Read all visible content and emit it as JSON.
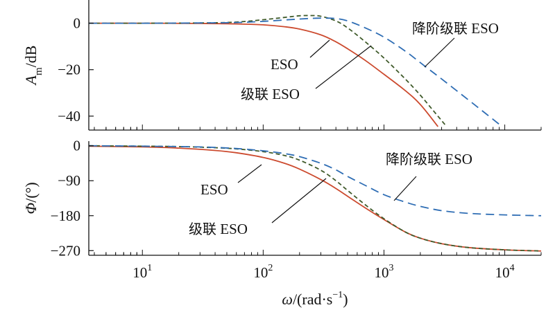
{
  "chart_data": [
    {
      "type": "line",
      "scale_x": "log",
      "xlim": [
        3.6,
        20000
      ],
      "ylim": [
        -46,
        10
      ],
      "ylabel_main": "A",
      "ylabel_sub": "m",
      "ylabel_unit": "/dB",
      "yticks": [
        0,
        -20,
        -40
      ],
      "ytick_labels": [
        "0",
        "−20",
        "−40"
      ],
      "series": [
        {
          "name": "ESO",
          "color": "#cc4a2e",
          "dash": "",
          "x": [
            3.6,
            10,
            30,
            60,
            100,
            150,
            200,
            300,
            400,
            500,
            700,
            1000,
            1500,
            2000,
            2800
          ],
          "y": [
            0,
            0,
            -0.1,
            -0.3,
            -0.7,
            -1.5,
            -2.5,
            -5,
            -8,
            -11,
            -16,
            -22,
            -29,
            -35,
            -44.5
          ]
        },
        {
          "name": "级联 ESO",
          "color": "#3f5a2a",
          "dash": "6 4",
          "x": [
            3.6,
            10,
            30,
            60,
            100,
            150,
            200,
            250,
            300,
            400,
            500,
            700,
            1000,
            1500,
            2000,
            2500,
            3300
          ],
          "y": [
            0,
            0,
            0.1,
            0.5,
            1.5,
            2.5,
            3.2,
            3.3,
            3,
            1,
            -2,
            -8,
            -15,
            -24,
            -31,
            -37,
            -44.5
          ]
        },
        {
          "name": "降阶级联 ESO",
          "color": "#2e6db4",
          "dash": "12 7",
          "x": [
            3.6,
            10,
            30,
            60,
            100,
            200,
            300,
            400,
            500,
            700,
            1000,
            1500,
            2000,
            3000,
            5000,
            7000,
            9500
          ],
          "y": [
            0,
            0,
            0.1,
            0.3,
            0.8,
            1.8,
            2.2,
            2,
            1,
            -2,
            -6,
            -12,
            -17,
            -24,
            -33,
            -39,
            -44.5
          ]
        }
      ],
      "annotations": [
        {
          "text": "ESO"
        },
        {
          "text": "级联 ESO"
        },
        {
          "text": "降阶级联 ESO"
        }
      ]
    },
    {
      "type": "line",
      "scale_x": "log",
      "xlim": [
        3.6,
        20000
      ],
      "ylim": [
        -282,
        12
      ],
      "ylabel_main": "Φ",
      "ylabel_unit": "/(°)",
      "yticks": [
        0,
        -90,
        -180,
        -270
      ],
      "ytick_labels": [
        "0",
        "−90",
        "−180",
        "−270"
      ],
      "xticks": [
        10,
        100,
        1000,
        10000
      ],
      "xtick_labels": [
        {
          "base": "10",
          "exp": "1"
        },
        {
          "base": "10",
          "exp": "2"
        },
        {
          "base": "10",
          "exp": "3"
        },
        {
          "base": "10",
          "exp": "4"
        }
      ],
      "xlabel_main": "ω",
      "xlabel_unit": "/(rad·s",
      "xlabel_exp": "−1",
      "xlabel_close": ")",
      "series": [
        {
          "name": "ESO",
          "color": "#cc4a2e",
          "dash": "",
          "x": [
            3.6,
            10,
            20,
            40,
            60,
            100,
            150,
            200,
            300,
            400,
            500,
            700,
            1000,
            1500,
            2000,
            3000,
            5000,
            10000,
            20000
          ],
          "y": [
            -1,
            -3,
            -6,
            -12,
            -18,
            -30,
            -45,
            -60,
            -87,
            -110,
            -130,
            -160,
            -190,
            -222,
            -238,
            -252,
            -262,
            -268,
            -271
          ]
        },
        {
          "name": "级联 ESO",
          "color": "#3f5a2a",
          "dash": "6 4",
          "x": [
            3.6,
            10,
            20,
            40,
            60,
            100,
            150,
            200,
            300,
            400,
            500,
            700,
            1000,
            1500,
            2000,
            3000,
            5000,
            10000,
            20000
          ],
          "y": [
            0,
            -1,
            -2,
            -5,
            -8,
            -15,
            -25,
            -37,
            -63,
            -90,
            -115,
            -152,
            -188,
            -222,
            -238,
            -252,
            -262,
            -268,
            -271
          ]
        },
        {
          "name": "降阶级联 ESO",
          "color": "#2e6db4",
          "dash": "12 7",
          "x": [
            3.6,
            10,
            30,
            60,
            100,
            150,
            200,
            300,
            400,
            500,
            700,
            1000,
            1500,
            2000,
            3000,
            5000,
            10000,
            20000
          ],
          "y": [
            0,
            -1,
            -3,
            -7,
            -13,
            -20,
            -28,
            -45,
            -62,
            -79,
            -102,
            -126,
            -145,
            -156,
            -167,
            -174,
            -178,
            -180
          ]
        }
      ],
      "annotations": [
        {
          "text": "ESO"
        },
        {
          "text": "级联 ESO"
        },
        {
          "text": "降阶级联 ESO"
        }
      ]
    }
  ]
}
